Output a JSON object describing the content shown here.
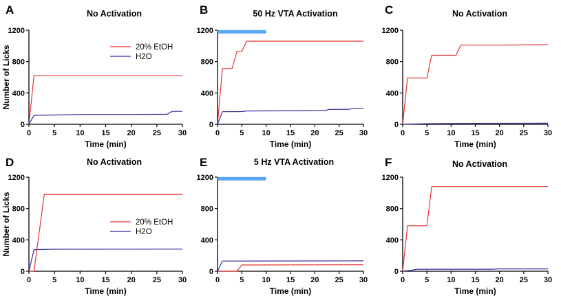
{
  "colors": {
    "etoh": "#e8312f",
    "h2o": "#2d2d9e",
    "activation_bar": "#5aa6f2",
    "axis": "#000000"
  },
  "chart_data": [
    {
      "id": "A",
      "type": "line",
      "letter": "A",
      "title": "No Activation",
      "xlabel": "Time (min)",
      "ylabel": "Number of Licks",
      "xlim": [
        0,
        30
      ],
      "ylim": [
        0,
        1200
      ],
      "xticks": [
        0,
        5,
        10,
        15,
        20,
        25,
        30
      ],
      "yticks": [
        0,
        400,
        800,
        1200
      ],
      "legend": {
        "position": "top-right",
        "entries": [
          "20% EtOH",
          "H2O"
        ]
      },
      "activation_bar": null,
      "series": [
        {
          "name": "20% EtOH",
          "color_key": "etoh",
          "points": [
            [
              0,
              0
            ],
            [
              1,
              620
            ],
            [
              30,
              620
            ]
          ]
        },
        {
          "name": "H2O",
          "color_key": "h2o",
          "points": [
            [
              0,
              0
            ],
            [
              1,
              115
            ],
            [
              5,
              118
            ],
            [
              10,
              125
            ],
            [
              20,
              125
            ],
            [
              27,
              128
            ],
            [
              28,
              165
            ],
            [
              30,
              165
            ]
          ]
        }
      ]
    },
    {
      "id": "B",
      "type": "line",
      "letter": "B",
      "title": "50 Hz VTA Activation",
      "xlabel": "Time (min)",
      "ylabel": "",
      "xlim": [
        0,
        30
      ],
      "ylim": [
        0,
        1200
      ],
      "xticks": [
        0,
        5,
        10,
        15,
        20,
        25,
        30
      ],
      "yticks": [
        0,
        400,
        800,
        1200
      ],
      "legend": null,
      "activation_bar": {
        "x_start": 0,
        "x_end": 10,
        "y": 1180
      },
      "series": [
        {
          "name": "20% EtOH",
          "color_key": "etoh",
          "points": [
            [
              0,
              0
            ],
            [
              1,
              710
            ],
            [
              3,
              710
            ],
            [
              4,
              930
            ],
            [
              5,
              930
            ],
            [
              6,
              1060
            ],
            [
              30,
              1060
            ]
          ]
        },
        {
          "name": "H2O",
          "color_key": "h2o",
          "points": [
            [
              0,
              0
            ],
            [
              1,
              160
            ],
            [
              5,
              162
            ],
            [
              6,
              170
            ],
            [
              15,
              172
            ],
            [
              22,
              175
            ],
            [
              23,
              190
            ],
            [
              27,
              192
            ],
            [
              28,
              200
            ],
            [
              30,
              200
            ]
          ]
        }
      ]
    },
    {
      "id": "C",
      "type": "line",
      "letter": "C",
      "title": "No Activation",
      "xlabel": "Time (min)",
      "ylabel": "",
      "xlim": [
        0,
        30
      ],
      "ylim": [
        0,
        1200
      ],
      "xticks": [
        0,
        5,
        10,
        15,
        20,
        25,
        30
      ],
      "yticks": [
        0,
        400,
        800,
        1200
      ],
      "legend": null,
      "activation_bar": null,
      "series": [
        {
          "name": "20% EtOH",
          "color_key": "etoh",
          "points": [
            [
              0,
              0
            ],
            [
              1,
              590
            ],
            [
              5,
              590
            ],
            [
              6,
              880
            ],
            [
              11,
              880
            ],
            [
              12,
              1010
            ],
            [
              20,
              1010
            ],
            [
              30,
              1015
            ]
          ]
        },
        {
          "name": "H2O",
          "color_key": "h2o",
          "points": [
            [
              0,
              0
            ],
            [
              5,
              8
            ],
            [
              10,
              10
            ],
            [
              15,
              12
            ],
            [
              30,
              14
            ]
          ]
        }
      ]
    },
    {
      "id": "D",
      "type": "line",
      "letter": "D",
      "title": "No Activation",
      "xlabel": "Time (min)",
      "ylabel": "Number of Licks",
      "xlim": [
        0,
        30
      ],
      "ylim": [
        0,
        1200
      ],
      "xticks": [
        0,
        5,
        10,
        15,
        20,
        25,
        30
      ],
      "yticks": [
        0,
        400,
        800,
        1200
      ],
      "legend": {
        "position": "right",
        "entries": [
          "20% EtOH",
          "H2O"
        ]
      },
      "activation_bar": null,
      "series": [
        {
          "name": "20% EtOH",
          "color_key": "etoh",
          "points": [
            [
              0,
              0
            ],
            [
              1,
              0
            ],
            [
              3,
              980
            ],
            [
              30,
              980
            ]
          ]
        },
        {
          "name": "H2O",
          "color_key": "h2o",
          "points": [
            [
              0,
              0
            ],
            [
              1,
              275
            ],
            [
              5,
              280
            ],
            [
              30,
              282
            ]
          ]
        }
      ]
    },
    {
      "id": "E",
      "type": "line",
      "letter": "E",
      "title": "5 Hz VTA Activation",
      "xlabel": "Time (min)",
      "ylabel": "",
      "xlim": [
        0,
        30
      ],
      "ylim": [
        0,
        1200
      ],
      "xticks": [
        0,
        5,
        10,
        15,
        20,
        25,
        30
      ],
      "yticks": [
        0,
        400,
        800,
        1200
      ],
      "legend": null,
      "activation_bar": {
        "x_start": 0,
        "x_end": 10,
        "y": 1180
      },
      "series": [
        {
          "name": "20% EtOH",
          "color_key": "etoh",
          "points": [
            [
              0,
              0
            ],
            [
              4,
              0
            ],
            [
              5,
              80
            ],
            [
              30,
              82
            ]
          ]
        },
        {
          "name": "H2O",
          "color_key": "h2o",
          "points": [
            [
              0,
              0
            ],
            [
              1,
              130
            ],
            [
              30,
              132
            ]
          ]
        }
      ]
    },
    {
      "id": "F",
      "type": "line",
      "letter": "F",
      "title": "No Activation",
      "xlabel": "Time (min)",
      "ylabel": "",
      "xlim": [
        0,
        30
      ],
      "ylim": [
        0,
        1200
      ],
      "xticks": [
        0,
        5,
        10,
        15,
        20,
        25,
        30
      ],
      "yticks": [
        0,
        400,
        800,
        1200
      ],
      "legend": null,
      "activation_bar": null,
      "series": [
        {
          "name": "20% EtOH",
          "color_key": "etoh",
          "points": [
            [
              0,
              0
            ],
            [
              1,
              580
            ],
            [
              5,
              580
            ],
            [
              6,
              1080
            ],
            [
              30,
              1080
            ]
          ]
        },
        {
          "name": "H2O",
          "color_key": "h2o",
          "points": [
            [
              0,
              0
            ],
            [
              2,
              15
            ],
            [
              3,
              25
            ],
            [
              18,
              25
            ],
            [
              20,
              30
            ],
            [
              30,
              30
            ]
          ]
        }
      ]
    }
  ]
}
